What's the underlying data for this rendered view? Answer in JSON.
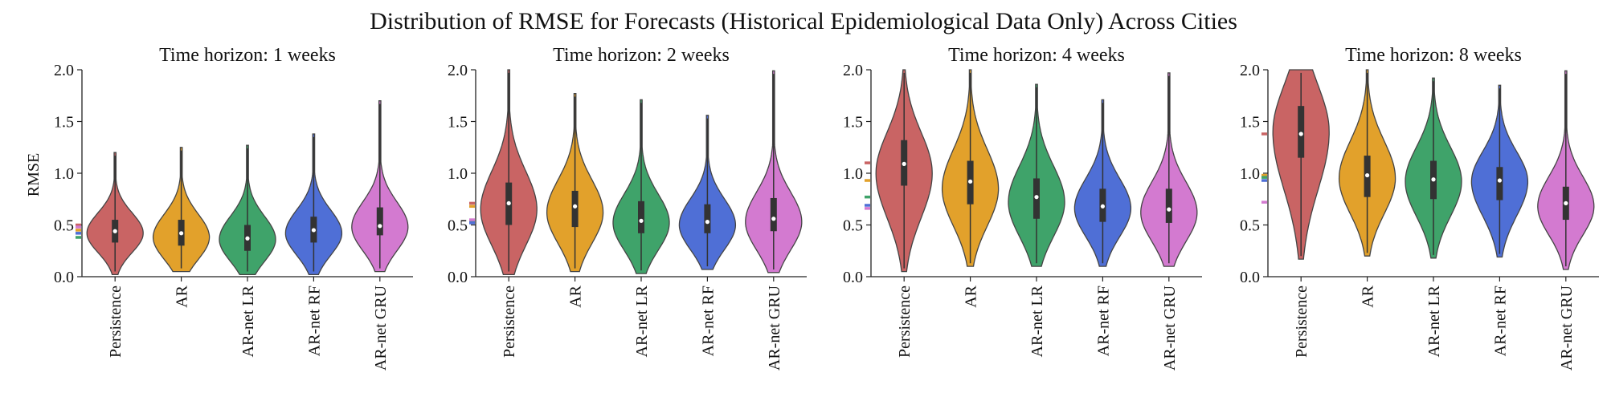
{
  "chart_data": {
    "type": "violin",
    "title": "Distribution of RMSE for Forecasts (Historical Epidemiological Data Only) Across Cities",
    "ylabel": "RMSE",
    "ylim": [
      0.0,
      2.0
    ],
    "yticks": [
      "0.0",
      "0.5",
      "1.0",
      "1.5",
      "2.0"
    ],
    "categories": [
      "Persistence",
      "AR",
      "AR-net LR",
      "AR-net RF",
      "AR-net GRU"
    ],
    "colors": [
      "#c96464",
      "#e2a12b",
      "#3fa36a",
      "#4f6fd6",
      "#d37ad0"
    ],
    "grid": false,
    "panels": [
      {
        "title": "Time horizon: 1 weeks",
        "violins": [
          {
            "min": 0.02,
            "q1": 0.33,
            "median": 0.44,
            "q3": 0.55,
            "max": 1.2,
            "mode": 0.42,
            "ref": 0.5
          },
          {
            "min": 0.05,
            "q1": 0.3,
            "median": 0.42,
            "q3": 0.55,
            "max": 1.25,
            "mode": 0.38,
            "ref": 0.45
          },
          {
            "min": 0.02,
            "q1": 0.25,
            "median": 0.37,
            "q3": 0.5,
            "max": 1.27,
            "mode": 0.36,
            "ref": 0.38
          },
          {
            "min": 0.02,
            "q1": 0.33,
            "median": 0.45,
            "q3": 0.58,
            "max": 1.38,
            "mode": 0.42,
            "ref": 0.42
          },
          {
            "min": 0.05,
            "q1": 0.4,
            "median": 0.49,
            "q3": 0.67,
            "max": 1.7,
            "mode": 0.48,
            "ref": 0.48
          }
        ]
      },
      {
        "title": "Time horizon: 2 weeks",
        "violins": [
          {
            "min": 0.02,
            "q1": 0.5,
            "median": 0.71,
            "q3": 0.91,
            "max": 2.0,
            "mode": 0.65,
            "ref": 0.71
          },
          {
            "min": 0.05,
            "q1": 0.48,
            "median": 0.68,
            "q3": 0.83,
            "max": 1.77,
            "mode": 0.62,
            "ref": 0.68
          },
          {
            "min": 0.03,
            "q1": 0.42,
            "median": 0.54,
            "q3": 0.73,
            "max": 1.71,
            "mode": 0.52,
            "ref": 0.53
          },
          {
            "min": 0.07,
            "q1": 0.42,
            "median": 0.53,
            "q3": 0.7,
            "max": 1.56,
            "mode": 0.5,
            "ref": 0.52
          },
          {
            "min": 0.04,
            "q1": 0.44,
            "median": 0.56,
            "q3": 0.76,
            "max": 1.99,
            "mode": 0.53,
            "ref": 0.55
          }
        ]
      },
      {
        "title": "Time horizon: 4 weeks",
        "violins": [
          {
            "min": 0.05,
            "q1": 0.88,
            "median": 1.09,
            "q3": 1.32,
            "max": 2.0,
            "mode": 1.0,
            "ref": 1.1
          },
          {
            "min": 0.1,
            "q1": 0.7,
            "median": 0.92,
            "q3": 1.12,
            "max": 2.0,
            "mode": 0.85,
            "ref": 0.93
          },
          {
            "min": 0.1,
            "q1": 0.56,
            "median": 0.77,
            "q3": 0.95,
            "max": 1.86,
            "mode": 0.72,
            "ref": 0.77
          },
          {
            "min": 0.1,
            "q1": 0.53,
            "median": 0.68,
            "q3": 0.85,
            "max": 1.71,
            "mode": 0.66,
            "ref": 0.69
          },
          {
            "min": 0.1,
            "q1": 0.52,
            "median": 0.65,
            "q3": 0.85,
            "max": 1.97,
            "mode": 0.62,
            "ref": 0.66
          }
        ]
      },
      {
        "title": "Time horizon: 8 weeks",
        "violins": [
          {
            "min": 0.17,
            "q1": 1.15,
            "median": 1.38,
            "q3": 1.65,
            "max": 2.0,
            "mode": 1.4,
            "ref": 1.38
          },
          {
            "min": 0.2,
            "q1": 0.77,
            "median": 0.98,
            "q3": 1.17,
            "max": 2.0,
            "mode": 0.95,
            "ref": 0.98
          },
          {
            "min": 0.18,
            "q1": 0.75,
            "median": 0.94,
            "q3": 1.12,
            "max": 1.92,
            "mode": 0.92,
            "ref": 0.96
          },
          {
            "min": 0.19,
            "q1": 0.74,
            "median": 0.93,
            "q3": 1.06,
            "max": 1.85,
            "mode": 0.92,
            "ref": 0.93
          },
          {
            "min": 0.07,
            "q1": 0.55,
            "median": 0.71,
            "q3": 0.87,
            "max": 1.99,
            "mode": 0.68,
            "ref": 0.72
          }
        ]
      }
    ]
  }
}
